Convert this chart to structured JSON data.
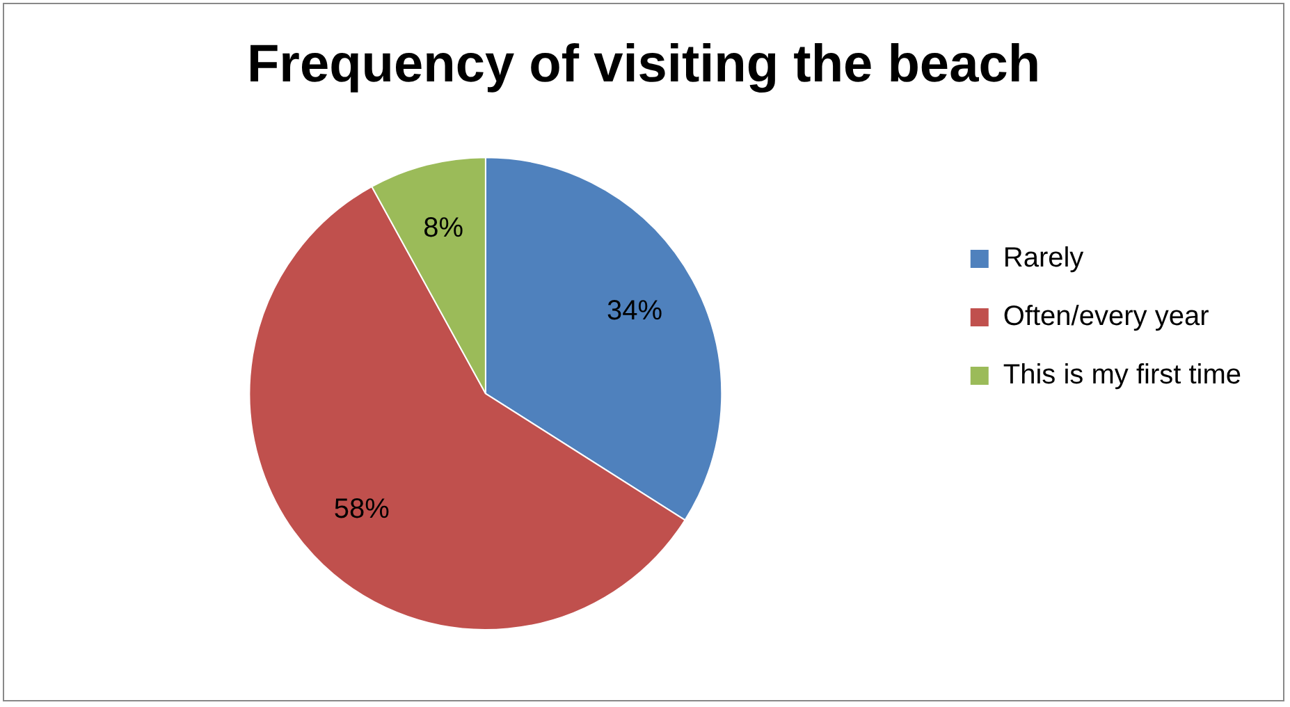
{
  "chart_data": {
    "type": "pie",
    "title": "Frequency of visiting the beach",
    "categories": [
      "Rarely",
      "Often/every year",
      "This is my first time"
    ],
    "values": [
      34,
      58,
      8
    ],
    "colors": [
      "#4f81bd",
      "#c0504d",
      "#9bbb59"
    ],
    "value_labels": [
      "34%",
      "58%",
      "8%"
    ],
    "legend": "right"
  }
}
